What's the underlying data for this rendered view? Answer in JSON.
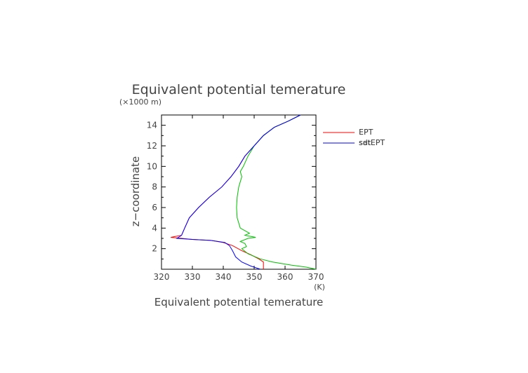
{
  "chart_data": {
    "type": "line",
    "title": "Equivalent potential temerature",
    "xlabel": "Equivalent potential temerature",
    "ylabel": "z−coordinate",
    "x_unit": "(K)",
    "y_unit": "(×1000 m)",
    "xlim": [
      320,
      370
    ],
    "ylim": [
      0,
      15
    ],
    "xticks": [
      320,
      330,
      340,
      350,
      360,
      370
    ],
    "yticks": [
      2,
      4,
      6,
      8,
      10,
      12,
      14
    ],
    "grid": false,
    "legend_position": "right",
    "series": [
      {
        "name": "EPT",
        "color": "#ff0000",
        "points": [
          [
            365.0,
            15.0
          ],
          [
            361.0,
            14.4
          ],
          [
            356.5,
            13.8
          ],
          [
            353.0,
            13.0
          ],
          [
            350.0,
            12.0
          ],
          [
            347.0,
            11.0
          ],
          [
            345.0,
            10.0
          ],
          [
            342.5,
            9.0
          ],
          [
            339.5,
            8.0
          ],
          [
            335.5,
            7.0
          ],
          [
            332.0,
            6.0
          ],
          [
            329.0,
            5.0
          ],
          [
            327.5,
            4.0
          ],
          [
            326.5,
            3.3
          ],
          [
            323.0,
            3.1
          ],
          [
            330.0,
            2.9
          ],
          [
            336.0,
            2.8
          ],
          [
            340.0,
            2.6
          ],
          [
            343.0,
            2.3
          ],
          [
            346.0,
            1.8
          ],
          [
            349.0,
            1.4
          ],
          [
            351.5,
            1.0
          ],
          [
            353.0,
            0.7
          ],
          [
            353.0,
            0.0
          ]
        ]
      },
      {
        "name": "satEPT",
        "color": "#00c000",
        "points": [
          [
            365.0,
            15.0
          ],
          [
            361.0,
            14.4
          ],
          [
            356.5,
            13.8
          ],
          [
            353.0,
            13.0
          ],
          [
            350.0,
            12.0
          ],
          [
            348.0,
            11.0
          ],
          [
            346.5,
            10.0
          ],
          [
            345.5,
            9.5
          ],
          [
            346.0,
            9.0
          ],
          [
            345.5,
            8.5
          ],
          [
            345.0,
            8.0
          ],
          [
            344.5,
            7.0
          ],
          [
            344.3,
            6.0
          ],
          [
            344.5,
            5.0
          ],
          [
            345.5,
            4.0
          ],
          [
            348.5,
            3.5
          ],
          [
            347.0,
            3.3
          ],
          [
            350.5,
            3.1
          ],
          [
            348.0,
            3.0
          ],
          [
            345.5,
            2.7
          ],
          [
            347.0,
            2.5
          ],
          [
            347.5,
            2.2
          ],
          [
            346.0,
            2.0
          ],
          [
            348.0,
            1.5
          ],
          [
            352.0,
            1.0
          ],
          [
            356.0,
            0.7
          ],
          [
            362.0,
            0.4
          ],
          [
            367.0,
            0.2
          ],
          [
            370.0,
            0.0
          ]
        ]
      },
      {
        "name": "sdt",
        "color": "#0000ff",
        "points": [
          [
            365.0,
            15.0
          ],
          [
            361.0,
            14.4
          ],
          [
            356.5,
            13.8
          ],
          [
            353.0,
            13.0
          ],
          [
            350.0,
            12.0
          ],
          [
            347.0,
            11.0
          ],
          [
            345.0,
            10.0
          ],
          [
            342.5,
            9.0
          ],
          [
            339.5,
            8.0
          ],
          [
            335.5,
            7.0
          ],
          [
            332.0,
            6.0
          ],
          [
            329.0,
            5.0
          ],
          [
            327.5,
            4.0
          ],
          [
            326.5,
            3.3
          ],
          [
            325.0,
            3.0
          ],
          [
            330.0,
            2.9
          ],
          [
            336.0,
            2.8
          ],
          [
            340.5,
            2.6
          ],
          [
            342.0,
            2.3
          ],
          [
            343.0,
            1.8
          ],
          [
            344.0,
            1.2
          ],
          [
            346.0,
            0.7
          ],
          [
            349.0,
            0.3
          ],
          [
            352.0,
            0.0
          ]
        ]
      }
    ]
  }
}
